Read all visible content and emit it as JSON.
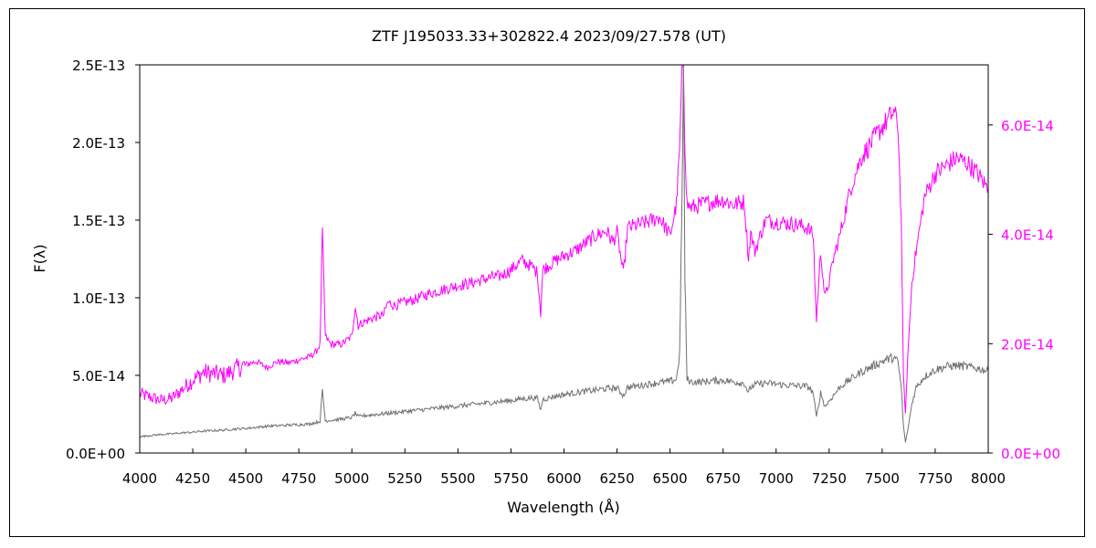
{
  "chart_data": {
    "type": "line",
    "title": "ZTF J195033.33+302822.4     2023/09/27.578 (UT)",
    "xlabel": "Wavelength (Å)",
    "ylabel": "F(λ)",
    "xlim": [
      4000,
      8000
    ],
    "xticks": [
      4000,
      4250,
      4500,
      4750,
      5000,
      5250,
      5500,
      5750,
      6000,
      6250,
      6500,
      6750,
      7000,
      7250,
      7500,
      7750,
      8000
    ],
    "xtick_labels": [
      "4000",
      "4250",
      "4500",
      "4750",
      "5000",
      "5250",
      "5500",
      "5750",
      "6000",
      "6250",
      "6500",
      "6750",
      "7000",
      "7250",
      "7500",
      "7750",
      "8000"
    ],
    "y_left": {
      "lim": [
        0,
        2.5e-13
      ],
      "ticks": [
        0,
        5e-14,
        1e-13,
        1.5e-13,
        2e-13,
        2.5e-13
      ],
      "tick_labels": [
        "0.0E+00",
        "5.0E-14",
        "1.0E-13",
        "1.5E-13",
        "2.0E-13",
        "2.5E-13"
      ],
      "color": "#000000"
    },
    "y_right": {
      "lim": [
        0,
        7.1e-14
      ],
      "ticks": [
        0,
        2e-14,
        4e-14,
        6e-14
      ],
      "tick_labels": [
        "0.0E+00",
        "2.0E-14",
        "4.0E-14",
        "6.0E-14"
      ],
      "color": "#ff00ff"
    },
    "grid": false,
    "legend": "none",
    "series": [
      {
        "axis": "left",
        "color": "#ff00ff",
        "x": [
          4000,
          4050,
          4100,
          4150,
          4200,
          4250,
          4300,
          4350,
          4400,
          4450,
          4500,
          4550,
          4600,
          4650,
          4700,
          4750,
          4800,
          4830,
          4850,
          4861,
          4875,
          4900,
          4950,
          5000,
          5016,
          5030,
          5050,
          5100,
          5150,
          5170,
          5200,
          5250,
          5300,
          5350,
          5400,
          5450,
          5500,
          5550,
          5600,
          5650,
          5700,
          5750,
          5800,
          5850,
          5875,
          5890,
          5900,
          5950,
          6000,
          6050,
          6100,
          6150,
          6200,
          6230,
          6250,
          6280,
          6300,
          6350,
          6400,
          6450,
          6500,
          6530,
          6545,
          6555,
          6563,
          6570,
          6580,
          6600,
          6650,
          6700,
          6750,
          6800,
          6850,
          6870,
          6880,
          6900,
          6950,
          7000,
          7050,
          7100,
          7150,
          7175,
          7190,
          7210,
          7230,
          7250,
          7270,
          7300,
          7350,
          7400,
          7450,
          7500,
          7530,
          7555,
          7575,
          7590,
          7600,
          7610,
          7620,
          7640,
          7660,
          7700,
          7750,
          7800,
          7850,
          7900,
          7950,
          8000
        ],
        "y": [
          3.8e-14,
          3.6e-14,
          3.4e-14,
          3.5e-14,
          4.1e-14,
          4.7e-14,
          5.2e-14,
          5.1e-14,
          5e-14,
          5.4e-14,
          5.7e-14,
          5.9e-14,
          5.5e-14,
          5.9e-14,
          5.8e-14,
          6e-14,
          6.2e-14,
          6.5e-14,
          7e-14,
          1.43e-13,
          7.5e-14,
          7e-14,
          7e-14,
          7.5e-14,
          9.5e-14,
          8.2e-14,
          8.4e-14,
          8.7e-14,
          8.9e-14,
          9.7e-14,
          9.5e-14,
          9.7e-14,
          9.9e-14,
          1.02e-13,
          1.04e-13,
          1.06e-13,
          1.08e-13,
          1.09e-13,
          1.11e-13,
          1.13e-13,
          1.14e-13,
          1.18e-13,
          1.24e-13,
          1.2e-13,
          1.16e-13,
          9e-14,
          1.18e-13,
          1.23e-13,
          1.27e-13,
          1.3e-13,
          1.35e-13,
          1.4e-13,
          1.43e-13,
          1.36e-13,
          1.42e-13,
          1.15e-13,
          1.45e-13,
          1.47e-13,
          1.49e-13,
          1.52e-13,
          1.4e-13,
          1.6e-13,
          1.95e-13,
          2.4e-13,
          2.5e-13,
          2e-13,
          1.6e-13,
          1.58e-13,
          1.6e-13,
          1.62e-13,
          1.63e-13,
          1.6e-13,
          1.62e-13,
          1.25e-13,
          1.42e-13,
          1.3e-13,
          1.5e-13,
          1.49e-13,
          1.48e-13,
          1.47e-13,
          1.45e-13,
          1.4e-13,
          8.5e-14,
          1.3e-13,
          1e-13,
          1.1e-13,
          1.25e-13,
          1.4e-13,
          1.7e-13,
          1.9e-13,
          2e-13,
          2.1e-13,
          2.15e-13,
          2.2e-13,
          2.1e-13,
          1.5e-13,
          5e-14,
          2.5e-14,
          6e-14,
          1.1e-13,
          1.3e-13,
          1.65e-13,
          1.8e-13,
          1.85e-13,
          1.9e-13,
          1.87e-13,
          1.8e-13,
          1.7e-13
        ]
      },
      {
        "axis": "right",
        "color": "#707070",
        "x": [
          4000,
          4050,
          4100,
          4150,
          4200,
          4250,
          4300,
          4350,
          4400,
          4450,
          4500,
          4550,
          4600,
          4650,
          4700,
          4750,
          4800,
          4830,
          4850,
          4861,
          4875,
          4900,
          4950,
          5000,
          5016,
          5030,
          5050,
          5100,
          5150,
          5200,
          5250,
          5300,
          5350,
          5400,
          5450,
          5500,
          5550,
          5600,
          5650,
          5700,
          5750,
          5800,
          5850,
          5875,
          5890,
          5900,
          5950,
          6000,
          6050,
          6100,
          6150,
          6200,
          6250,
          6280,
          6300,
          6350,
          6400,
          6450,
          6500,
          6530,
          6545,
          6555,
          6563,
          6570,
          6580,
          6600,
          6650,
          6700,
          6750,
          6800,
          6850,
          6870,
          6880,
          6900,
          6950,
          7000,
          7050,
          7100,
          7150,
          7175,
          7190,
          7210,
          7230,
          7250,
          7270,
          7300,
          7350,
          7400,
          7450,
          7500,
          7530,
          7555,
          7575,
          7590,
          7600,
          7610,
          7620,
          7640,
          7660,
          7700,
          7750,
          7800,
          7850,
          7900,
          7950,
          8000
        ],
        "y": [
          3e-15,
          3.2e-15,
          3.4e-15,
          3.5e-15,
          3.7e-15,
          3.8e-15,
          4e-15,
          4.1e-15,
          4.2e-15,
          4.4e-15,
          4.5e-15,
          4.7e-15,
          4.9e-15,
          5e-15,
          5.1e-15,
          5.2e-15,
          5.3e-15,
          5.6e-15,
          5.8e-15,
          1.15e-14,
          5.9e-15,
          6e-15,
          6.2e-15,
          6.5e-15,
          7.3e-15,
          6.6e-15,
          6.8e-15,
          7e-15,
          7.2e-15,
          7.4e-15,
          7.6e-15,
          7.8e-15,
          8e-15,
          8.2e-15,
          8.4e-15,
          8.6e-15,
          8.8e-15,
          9e-15,
          9.2e-15,
          9.4e-15,
          9.6e-15,
          9.9e-15,
          1.01e-14,
          1e-14,
          7.8e-15,
          9.8e-15,
          1.03e-14,
          1.07e-14,
          1.1e-14,
          1.13e-14,
          1.15e-14,
          1.18e-14,
          1.19e-14,
          1.05e-14,
          1.2e-14,
          1.23e-14,
          1.26e-14,
          1.29e-14,
          1.31e-14,
          1.35e-14,
          1.8e-14,
          4.2e-14,
          7.1e-14,
          3.2e-14,
          1.35e-14,
          1.3e-14,
          1.3e-14,
          1.32e-14,
          1.33e-14,
          1.3e-14,
          1.28e-14,
          1.1e-14,
          1.2e-14,
          1.25e-14,
          1.28e-14,
          1.26e-14,
          1.24e-14,
          1.23e-14,
          1.22e-14,
          1.1e-14,
          6.5e-15,
          1.1e-14,
          8.5e-15,
          9.5e-15,
          1.05e-14,
          1.2e-14,
          1.35e-14,
          1.48e-14,
          1.58e-14,
          1.68e-14,
          1.72e-14,
          1.75e-14,
          1.65e-14,
          1.2e-14,
          5e-15,
          2e-15,
          4e-15,
          9e-15,
          1.2e-14,
          1.4e-14,
          1.52e-14,
          1.58e-14,
          1.6e-14,
          1.58e-14,
          1.55e-14,
          1.5e-14
        ]
      }
    ]
  }
}
